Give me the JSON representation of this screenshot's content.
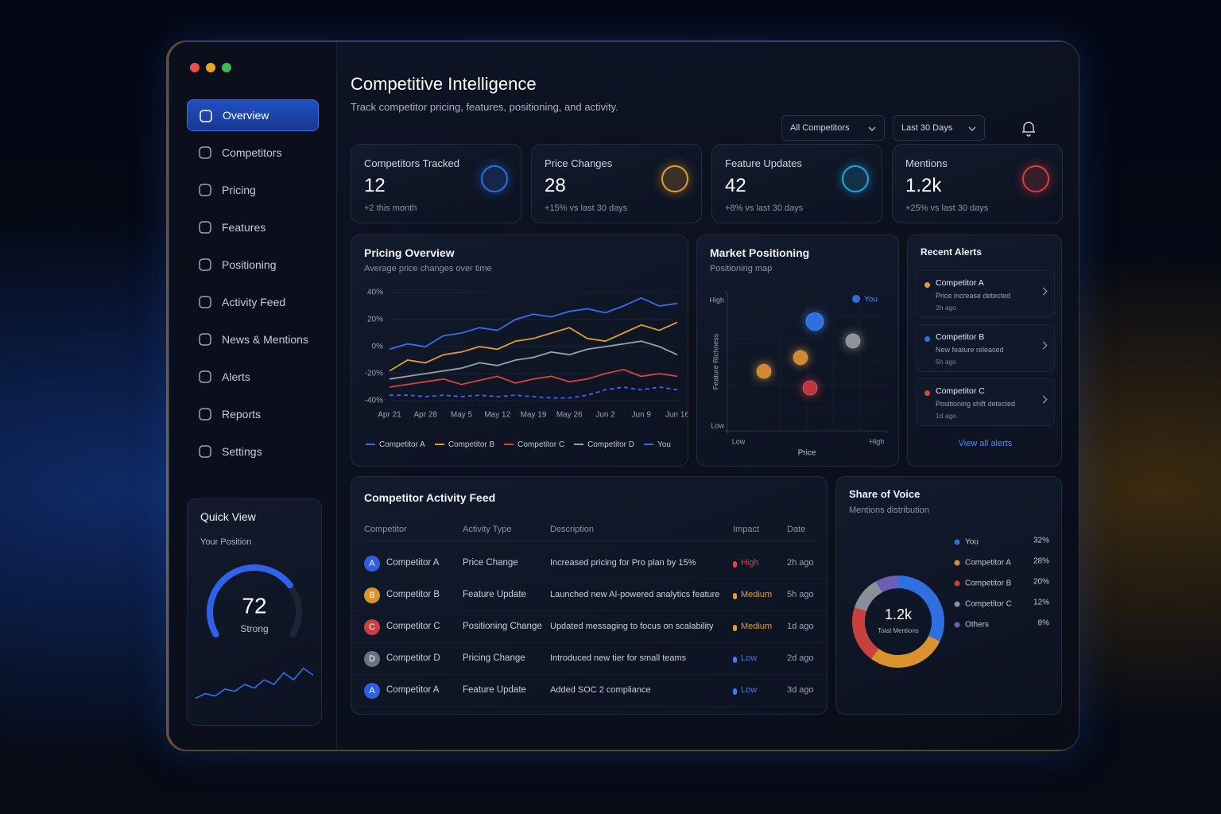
{
  "sidebar": {
    "nav": [
      {
        "label": "Overview",
        "active": true
      },
      {
        "label": "Competitors"
      },
      {
        "label": "Pricing"
      },
      {
        "label": "Features"
      },
      {
        "label": "Positioning"
      },
      {
        "label": "Activity Feed"
      },
      {
        "label": "News & Mentions"
      },
      {
        "label": "Alerts"
      },
      {
        "label": "Reports"
      },
      {
        "label": "Settings"
      }
    ],
    "quick_view": {
      "title": "Quick View",
      "label": "Your Position",
      "score": 72,
      "range": [
        0,
        100
      ],
      "rating": "Strong",
      "trend": [
        2,
        3,
        2.5,
        4,
        3.5,
        5,
        4.2,
        6,
        5,
        7.5,
        6,
        8.5,
        7
      ],
      "trend_ylim": [
        0,
        10
      ]
    }
  },
  "header": {
    "title": "Competitive Intelligence",
    "subtitle": "Track competitor pricing, features, positioning, and activity.",
    "filters": [
      "All Competitors",
      "Last 30 Days"
    ]
  },
  "kpis": [
    {
      "label": "Competitors Tracked",
      "value": 12,
      "note": "+2 this month",
      "color": "#2f6fe0"
    },
    {
      "label": "Price Changes",
      "value": 28,
      "note": "+15% vs last 30 days",
      "color": "#e0a030"
    },
    {
      "label": "Feature Updates",
      "value": 42,
      "note": "+8% vs last 30 days",
      "color": "#1fa8e0"
    },
    {
      "label": "Mentions",
      "value": "1.2k",
      "note": "+25% vs last 30 days",
      "color": "#d84040"
    }
  ],
  "chart_data": [
    {
      "type": "line",
      "title": "Pricing Overview",
      "subtitle": "Average price changes over time",
      "categories": [
        "Apr 21",
        null,
        "Apr 28",
        null,
        "May 5",
        null,
        "May 12",
        null,
        "May 19",
        null,
        "May 26",
        null,
        "Jun 2",
        null,
        "Jun 9",
        null,
        "Jun 16"
      ],
      "ylim": [
        -40,
        40
      ],
      "yticks": [
        {
          "value": -40,
          "label": "-40%"
        },
        {
          "value": -20,
          "label": "-20%"
        },
        {
          "value": 0,
          "label": "0%"
        },
        {
          "value": 20,
          "label": "20%"
        },
        {
          "value": 40,
          "label": "40%"
        }
      ],
      "series": [
        {
          "name": "Competitor A",
          "color": "#3d6bf0",
          "values": [
            -2,
            2,
            0,
            8,
            10,
            14,
            12,
            20,
            24,
            22,
            26,
            28,
            25,
            30,
            36,
            30,
            32
          ]
        },
        {
          "name": "Competitor B",
          "color": "#e0a030",
          "values": [
            -18,
            -10,
            -12,
            -6,
            -4,
            0,
            -2,
            4,
            6,
            10,
            14,
            6,
            4,
            10,
            16,
            12,
            18
          ]
        },
        {
          "name": "Competitor C",
          "color": "#d8433f",
          "values": [
            -30,
            -28,
            -26,
            -24,
            -28,
            -25,
            -22,
            -27,
            -24,
            -22,
            -26,
            -24,
            -20,
            -17,
            -22,
            -20,
            -22
          ]
        },
        {
          "name": "Competitor D",
          "color": "#9aa0aa",
          "values": [
            -24,
            -22,
            -20,
            -18,
            -16,
            -12,
            -14,
            -10,
            -8,
            -4,
            -6,
            -2,
            0,
            2,
            4,
            0,
            -6
          ]
        },
        {
          "name": "You",
          "color": "#3a66f0",
          "dashed": true,
          "values": [
            -36,
            -36,
            -37,
            -36,
            -37,
            -36,
            -37,
            -36,
            -37,
            -38,
            -38,
            -36,
            -32,
            -30,
            -32,
            -30,
            -32
          ]
        }
      ]
    },
    {
      "type": "scatter",
      "title": "Market Positioning",
      "subtitle": "Positioning map",
      "xlabel": "Price",
      "ylabel": "Feature Richness",
      "xlim": [
        0,
        10
      ],
      "ylim": [
        0,
        10
      ],
      "xticks": [
        {
          "value": 0,
          "label": "Low"
        },
        {
          "value": 10,
          "label": "High"
        }
      ],
      "yticks": [
        {
          "value": 0,
          "label": "Low"
        },
        {
          "value": 10,
          "label": "High"
        }
      ],
      "series": [
        {
          "name": "You",
          "color": "#2f6fe0",
          "x": [
            5.5
          ],
          "y": [
            7.9
          ]
        },
        {
          "color": "#8e939c",
          "x": [
            7.9
          ],
          "y": [
            6.5
          ]
        },
        {
          "color": "#d08a30",
          "x": [
            4.6
          ],
          "y": [
            5.3
          ]
        },
        {
          "color": "#d08a30",
          "x": [
            2.3
          ],
          "y": [
            4.3
          ]
        },
        {
          "color": "#c0363c",
          "x": [
            5.2
          ],
          "y": [
            3.1
          ]
        }
      ]
    },
    {
      "type": "donut",
      "title": "Share of Voice",
      "subtitle": "Mentions distribution",
      "center_value": "1.2k",
      "center_label": "Total Mentions",
      "categories": [
        "You",
        "Competitor A",
        "Competitor B",
        "Competitor C",
        "Others"
      ],
      "values": [
        32,
        28,
        20,
        12,
        8
      ],
      "value_labels": [
        "32%",
        "28%",
        "20%",
        "12%",
        "8%"
      ],
      "colors": [
        "#2f6fe0",
        "#d9922e",
        "#c94040",
        "#8a8f99",
        "#6a5fb0"
      ]
    }
  ],
  "alerts": {
    "title": "Recent Alerts",
    "items": [
      {
        "name": "Competitor A",
        "text": "Price increase detected",
        "time": "2h ago",
        "color": "#e0a030"
      },
      {
        "name": "Competitor B",
        "text": "New feature released",
        "time": "5h ago",
        "color": "#2f6fe0"
      },
      {
        "name": "Competitor C",
        "text": "Positioning shift detected",
        "time": "1d ago",
        "color": "#d8433f"
      }
    ],
    "link": "View all alerts"
  },
  "activity": {
    "title": "Competitor Activity Feed",
    "columns": [
      "Competitor",
      "Activity Type",
      "Description",
      "Impact",
      "Date"
    ],
    "rows": [
      {
        "initial": "A",
        "avatar_color": "#2f5fe0",
        "competitor": "Competitor A",
        "type": "Price Change",
        "description": "Increased pricing for Pro plan by 15%",
        "impact": "High",
        "impact_color": "#e0443f",
        "date": "2h ago"
      },
      {
        "initial": "B",
        "avatar_color": "#d9922e",
        "competitor": "Competitor B",
        "type": "Feature Update",
        "description": "Launched new AI-powered analytics feature",
        "impact": "Medium",
        "impact_color": "#e0a030",
        "date": "5h ago"
      },
      {
        "initial": "C",
        "avatar_color": "#c94040",
        "competitor": "Competitor C",
        "type": "Positioning Change",
        "description": "Updated messaging to focus on scalability",
        "impact": "Medium",
        "impact_color": "#e0a030",
        "date": "1d ago"
      },
      {
        "initial": "D",
        "avatar_color": "#6b7180",
        "competitor": "Competitor D",
        "type": "Pricing Change",
        "description": "Introduced new tier for small teams",
        "impact": "Low",
        "impact_color": "#3d7bf0",
        "date": "2d ago"
      },
      {
        "initial": "A",
        "avatar_color": "#2f5fe0",
        "competitor": "Competitor A",
        "type": "Feature Update",
        "description": "Added SOC 2 compliance",
        "impact": "Low",
        "impact_color": "#3d7bf0",
        "date": "3d ago"
      }
    ]
  }
}
